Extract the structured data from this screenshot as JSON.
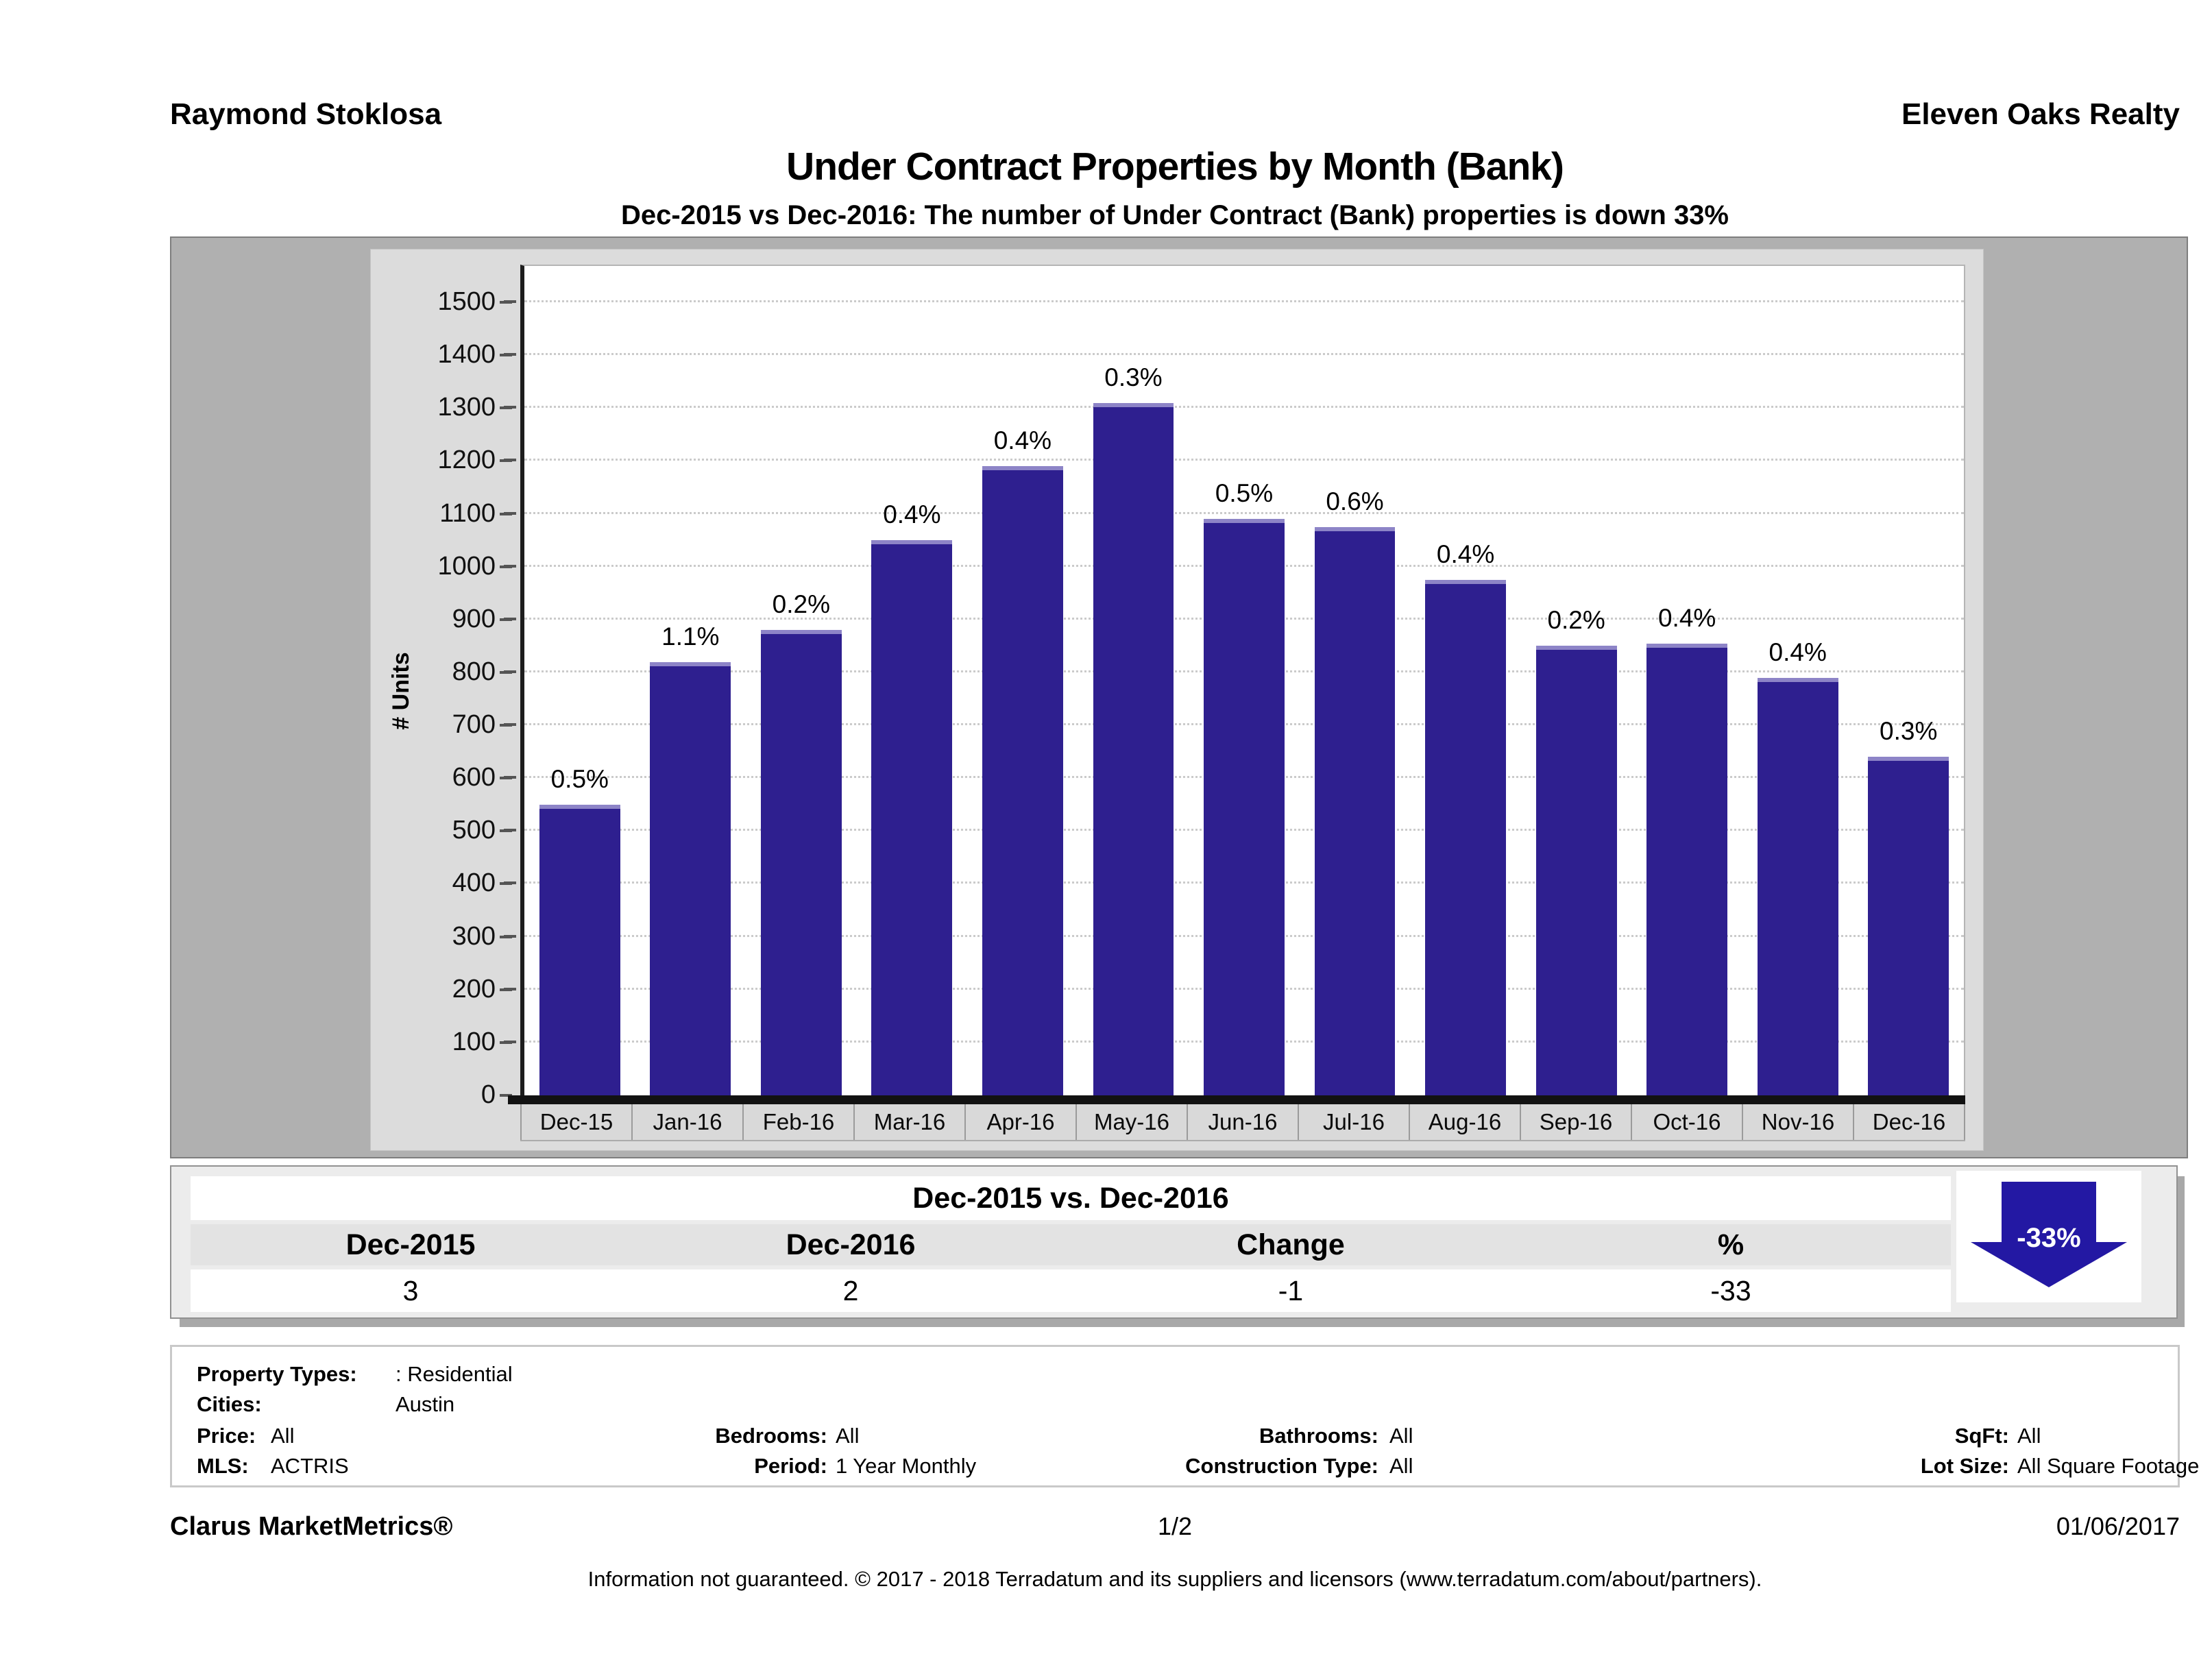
{
  "header": {
    "agent": "Raymond Stoklosa",
    "company": "Eleven Oaks Realty",
    "title": "Under Contract Properties by Month (Bank)",
    "subtitle": "Dec-2015 vs Dec-2016: The number of Under Contract (Bank)  properties is down 33%"
  },
  "chart_data": {
    "type": "bar",
    "title": "Under Contract Properties by Month (Bank)",
    "xlabel": "",
    "ylabel": "# Units",
    "ylim": [
      0,
      1570
    ],
    "y_ticks": [
      0,
      100,
      200,
      300,
      400,
      500,
      600,
      700,
      800,
      900,
      1000,
      1100,
      1200,
      1300,
      1400,
      1500
    ],
    "grid": true,
    "legend_position": "none",
    "categories": [
      "Dec-15",
      "Jan-16",
      "Feb-16",
      "Mar-16",
      "Apr-16",
      "May-16",
      "Jun-16",
      "Jul-16",
      "Aug-16",
      "Sep-16",
      "Oct-16",
      "Nov-16",
      "Dec-16"
    ],
    "values": [
      550,
      820,
      880,
      1050,
      1190,
      1310,
      1090,
      1075,
      975,
      850,
      855,
      790,
      640
    ],
    "bar_labels": [
      "0.5%",
      "1.1%",
      "0.2%",
      "0.4%",
      "0.4%",
      "0.3%",
      "0.5%",
      "0.6%",
      "0.4%",
      "0.2%",
      "0.4%",
      "0.4%",
      "0.3%"
    ],
    "bar_color": "#2e1f8f"
  },
  "summary_table": {
    "title": "Dec-2015 vs. Dec-2016",
    "columns": [
      "Dec-2015",
      "Dec-2016",
      "Change",
      "%"
    ],
    "values": [
      "3",
      "2",
      "-1",
      "-33"
    ],
    "arrow_badge": {
      "label": "-33%",
      "direction": "down",
      "color": "#2318a3"
    }
  },
  "filters": {
    "property_types_label": "Property Types:",
    "property_types_value": ": Residential",
    "cities_label": "Cities:",
    "cities_value": "Austin",
    "price_label": "Price:",
    "price_value": "All",
    "bedrooms_label": "Bedrooms:",
    "bedrooms_value": "All",
    "bathrooms_label": "Bathrooms:",
    "bathrooms_value": "All",
    "sqft_label": "SqFt:",
    "sqft_value": "All",
    "mls_label": "MLS:",
    "mls_value": "ACTRIS",
    "period_label": "Period:",
    "period_value": "1 Year Monthly",
    "construction_label": "Construction Type:",
    "construction_value": "All",
    "lot_label": "Lot Size:",
    "lot_value": "All Square Footage"
  },
  "footer": {
    "brand": "Clarus MarketMetrics®",
    "page": "1/2",
    "date": "01/06/2017",
    "disclaimer": "Information not guaranteed. © 2017 - 2018 Terradatum and its suppliers and licensors (www.terradatum.com/about/partners)."
  }
}
